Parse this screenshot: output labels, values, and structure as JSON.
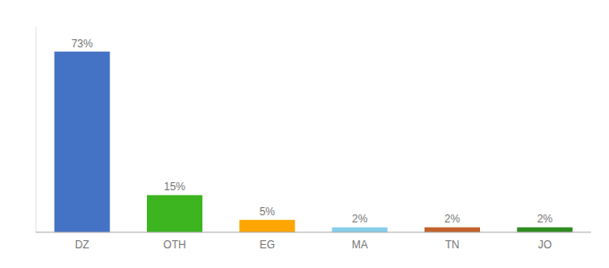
{
  "chart_data": {
    "type": "bar",
    "categories": [
      "DZ",
      "OTH",
      "EG",
      "MA",
      "TN",
      "JO"
    ],
    "values": [
      73,
      15,
      5,
      2,
      2,
      2
    ],
    "value_labels": [
      "73%",
      "15%",
      "5%",
      "2%",
      "2%",
      "2%"
    ],
    "colors": [
      "#4472C4",
      "#3CB521",
      "#FFA500",
      "#87CEEB",
      "#C0622B",
      "#2E8B20"
    ],
    "ylim": [
      0,
      83
    ],
    "data_labels": true,
    "tick_labels": "x",
    "grid": false
  }
}
